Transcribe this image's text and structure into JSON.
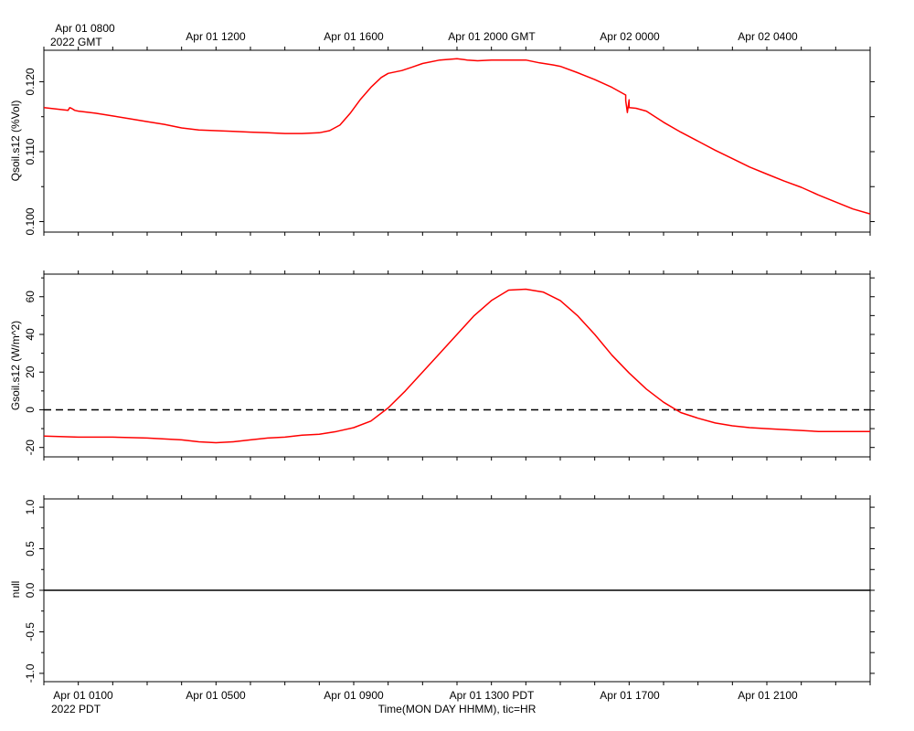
{
  "time_axis": {
    "gmt_labels": [
      "Apr 01 0800",
      "Apr 01 1200",
      "Apr 01 1600",
      "Apr 01 2000 GMT",
      "Apr 02 0000",
      "Apr 02 0400"
    ],
    "gmt_year": "2022 GMT",
    "pdt_labels": [
      "Apr 01 0100",
      "Apr 01 0500",
      "Apr 01 0900",
      "Apr 01 1300 PDT",
      "Apr 01 1700",
      "Apr 01 2100"
    ],
    "pdt_year": "2022 PDT",
    "xlabel": "Time(MON DAY HHMM), tic=HR"
  },
  "chart_data": [
    {
      "type": "line",
      "ylabel": "Qsoil.s12 (%Vol)",
      "x_unit": "hours since Apr 01 0000 PDT",
      "xlim": [
        0.0,
        24.0
      ],
      "ylim": [
        0.0985,
        0.1245
      ],
      "yticks": [
        0.1,
        0.11,
        0.12
      ],
      "yticklabels": [
        "0.100",
        "0.110",
        "0.120"
      ],
      "series": [
        {
          "color": "#ff0000",
          "x": [
            0.0,
            0.7,
            0.75,
            0.8,
            0.9,
            1.0,
            1.5,
            2.0,
            2.5,
            3.0,
            3.5,
            4.0,
            4.5,
            5.0,
            5.5,
            6.0,
            6.5,
            7.0,
            7.5,
            8.0,
            8.3,
            8.6,
            8.9,
            9.2,
            9.5,
            9.8,
            10.0,
            10.4,
            10.7,
            11.0,
            11.5,
            12.0,
            12.3,
            12.6,
            13.0,
            13.5,
            14.0,
            14.4,
            14.8,
            15.0,
            15.5,
            16.0,
            16.5,
            16.9,
            17.0,
            17.2,
            17.5,
            18.0,
            18.5,
            19.0,
            19.5,
            20.0,
            20.5,
            21.0,
            21.5,
            22.0,
            22.5,
            23.0,
            23.5,
            24.0
          ],
          "y": [
            0.1163,
            0.1159,
            0.1163,
            0.1162,
            0.1159,
            0.1158,
            0.1155,
            0.1151,
            0.1147,
            0.1143,
            0.1139,
            0.1134,
            0.1131,
            0.113,
            0.1129,
            0.1128,
            0.1127,
            0.1126,
            0.1126,
            0.1127,
            0.113,
            0.1138,
            0.1155,
            0.1175,
            0.1192,
            0.1206,
            0.1212,
            0.1216,
            0.1221,
            0.1226,
            0.1231,
            0.1233,
            0.1231,
            0.123,
            0.1231,
            0.1231,
            0.1231,
            0.1227,
            0.1224,
            0.1222,
            0.1213,
            0.1203,
            0.1192,
            0.1181,
            0.1174,
            0.1162,
            0.1158,
            0.1142,
            0.1128,
            0.1115,
            0.1102,
            0.109,
            0.1078,
            0.1068,
            0.1058,
            0.1049,
            0.1038,
            0.1028,
            0.1018,
            0.1011
          ],
          "markers": [
            {
              "x": 16.9,
              "y": 0.1173
            },
            {
              "x": 16.95,
              "y": 0.1156
            },
            {
              "x": 17.0,
              "y": 0.1163
            }
          ]
        }
      ]
    },
    {
      "type": "line",
      "ylabel": "Gsoil.s12 (W/m^2)",
      "x_unit": "hours since Apr 01 0000 PDT",
      "xlim": [
        0.0,
        24.0
      ],
      "ylim": [
        -25.0,
        72.0
      ],
      "yticks": [
        -20,
        0,
        20,
        40,
        60
      ],
      "yticklabels": [
        "-20",
        "0",
        "20",
        "40",
        "60"
      ],
      "reference_line": {
        "y": 0,
        "style": "dashed"
      },
      "series": [
        {
          "color": "#ff0000",
          "x": [
            0.0,
            1.0,
            2.0,
            3.0,
            4.0,
            4.5,
            5.0,
            5.5,
            6.0,
            6.5,
            7.0,
            7.5,
            8.0,
            8.5,
            9.0,
            9.5,
            10.0,
            10.5,
            11.0,
            11.5,
            12.0,
            12.5,
            13.0,
            13.5,
            14.0,
            14.5,
            15.0,
            15.5,
            16.0,
            16.5,
            17.0,
            17.5,
            18.0,
            18.5,
            19.0,
            19.5,
            20.0,
            20.5,
            21.0,
            21.5,
            22.0,
            22.5,
            23.0,
            23.5,
            24.0
          ],
          "y": [
            -14.0,
            -14.5,
            -14.5,
            -15.0,
            -16.0,
            -17.0,
            -17.5,
            -17.0,
            -16.0,
            -15.0,
            -14.5,
            -13.5,
            -13.0,
            -11.5,
            -9.5,
            -6.0,
            1.0,
            10.0,
            20.0,
            30.0,
            40.0,
            50.0,
            58.0,
            63.5,
            64.0,
            62.5,
            58.0,
            50.0,
            40.0,
            29.0,
            19.5,
            11.0,
            4.0,
            -1.5,
            -4.5,
            -7.0,
            -8.5,
            -9.5,
            -10.0,
            -10.5,
            -11.0,
            -11.5,
            -11.5,
            -11.5,
            -11.5
          ]
        }
      ]
    },
    {
      "type": "line",
      "ylabel": "null",
      "x_unit": "hours since Apr 01 0000 PDT",
      "xlim": [
        0.0,
        24.0
      ],
      "ylim": [
        -1.1,
        1.1
      ],
      "yticks": [
        -1.0,
        -0.5,
        0.0,
        0.5,
        1.0
      ],
      "yticklabels": [
        "-1.0",
        "-0.5",
        "0.0",
        "0.5",
        "1.0"
      ],
      "reference_line": {
        "y": 0.0,
        "style": "solid"
      },
      "series": []
    }
  ]
}
